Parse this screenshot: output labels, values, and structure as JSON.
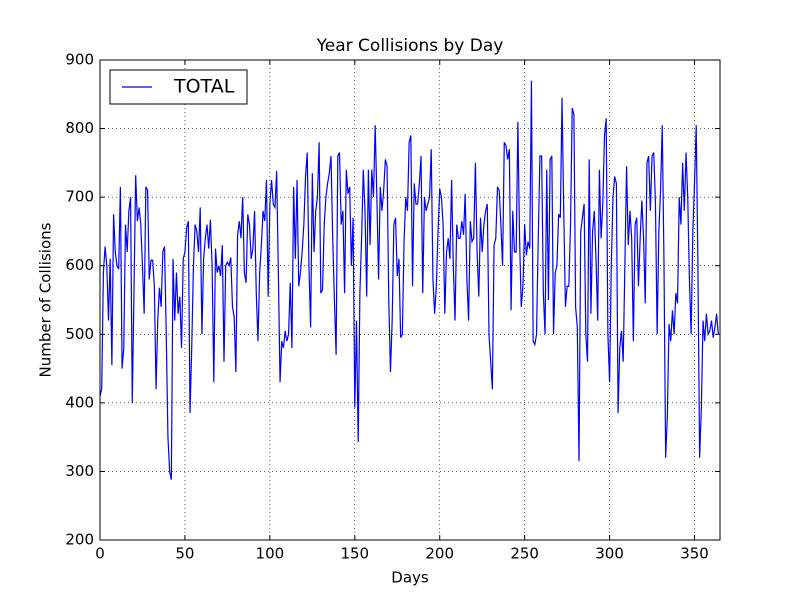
{
  "chart_data": {
    "type": "line",
    "title": "Year Collisions by Day",
    "x_label": "Days",
    "y_label": "Number of Collisions",
    "xlim": [
      0,
      365
    ],
    "ylim": [
      200,
      900
    ],
    "xticks": [
      0,
      50,
      100,
      150,
      200,
      250,
      300,
      350
    ],
    "yticks": [
      200,
      300,
      400,
      500,
      600,
      700,
      800,
      900
    ],
    "grid": true,
    "legend": "upper left",
    "x": [
      0,
      1,
      2,
      3,
      4,
      5,
      6,
      7,
      8,
      9,
      10,
      11,
      12,
      13,
      14,
      15,
      16,
      17,
      18,
      19,
      20,
      21,
      22,
      23,
      24,
      25,
      26,
      27,
      28,
      29,
      30,
      31,
      32,
      33,
      34,
      35,
      36,
      37,
      38,
      39,
      40,
      41,
      42,
      43,
      44,
      45,
      46,
      47,
      48,
      49,
      50,
      51,
      52,
      53,
      54,
      55,
      56,
      57,
      58,
      59,
      60,
      61,
      62,
      63,
      64,
      65,
      66,
      67,
      68,
      69,
      70,
      71,
      72,
      73,
      74,
      75,
      76,
      77,
      78,
      79,
      80,
      81,
      82,
      83,
      84,
      85,
      86,
      87,
      88,
      89,
      90,
      91,
      92,
      93,
      94,
      95,
      96,
      97,
      98,
      99,
      100,
      101,
      102,
      103,
      104,
      105,
      106,
      107,
      108,
      109,
      110,
      111,
      112,
      113,
      114,
      115,
      116,
      117,
      118,
      119,
      120,
      121,
      122,
      123,
      124,
      125,
      126,
      127,
      128,
      129,
      130,
      131,
      132,
      133,
      134,
      135,
      136,
      137,
      138,
      139,
      140,
      141,
      142,
      143,
      144,
      145,
      146,
      147,
      148,
      149,
      150,
      151,
      152,
      153,
      154,
      155,
      156,
      157,
      158,
      159,
      160,
      161,
      162,
      163,
      164,
      165,
      166,
      167,
      168,
      169,
      170,
      171,
      172,
      173,
      174,
      175,
      176,
      177,
      178,
      179,
      180,
      181,
      182,
      183,
      184,
      185,
      186,
      187,
      188,
      189,
      190,
      191,
      192,
      193,
      194,
      195,
      196,
      197,
      198,
      199,
      200,
      201,
      202,
      203,
      204,
      205,
      206,
      207,
      208,
      209,
      210,
      211,
      212,
      213,
      214,
      215,
      216,
      217,
      218,
      219,
      220,
      221,
      222,
      223,
      224,
      225,
      226,
      227,
      228,
      229,
      230,
      231,
      232,
      233,
      234,
      235,
      236,
      237,
      238,
      239,
      240,
      241,
      242,
      243,
      244,
      245,
      246,
      247,
      248,
      249,
      250,
      251,
      252,
      253,
      254,
      255,
      256,
      257,
      258,
      259,
      260,
      261,
      262,
      263,
      264,
      265,
      266,
      267,
      268,
      269,
      270,
      271,
      272,
      273,
      274,
      275,
      276,
      277,
      278,
      279,
      280,
      281,
      282,
      283,
      284,
      285,
      286,
      287,
      288,
      289,
      290,
      291,
      292,
      293,
      294,
      295,
      296,
      297,
      298,
      299,
      300,
      301,
      302,
      303,
      304,
      305,
      306,
      307,
      308,
      309,
      310,
      311,
      312,
      313,
      314,
      315,
      316,
      317,
      318,
      319,
      320,
      321,
      322,
      323,
      324,
      325,
      326,
      327,
      328,
      329,
      330,
      331,
      332,
      333,
      334,
      335,
      336,
      337,
      338,
      339,
      340,
      341,
      342,
      343,
      344,
      345,
      346,
      347,
      348,
      349,
      350,
      351,
      352,
      353,
      354,
      355,
      356,
      357,
      358,
      359,
      360,
      361,
      362,
      363,
      364
    ],
    "series": [
      {
        "name": "TOTAL",
        "color": "#0000ff",
        "values": [
          410,
          420,
          590,
          628,
          600,
          520,
          610,
          455,
          675,
          620,
          600,
          595,
          715,
          450,
          480,
          660,
          620,
          680,
          700,
          400,
          560,
          732,
          665,
          685,
          660,
          600,
          530,
          715,
          710,
          580,
          608,
          608,
          570,
          420,
          520,
          568,
          540,
          620,
          628,
          500,
          350,
          300,
          288,
          610,
          520,
          590,
          530,
          555,
          480,
          610,
          620,
          655,
          665,
          385,
          480,
          600,
          660,
          650,
          620,
          685,
          500,
          610,
          640,
          660,
          625,
          667,
          600,
          430,
          625,
          590,
          600,
          585,
          630,
          460,
          600,
          605,
          600,
          612,
          540,
          525,
          445,
          645,
          665,
          640,
          700,
          590,
          575,
          675,
          660,
          610,
          625,
          680,
          560,
          490,
          590,
          630,
          680,
          665,
          725,
          555,
          690,
          725,
          690,
          685,
          738,
          590,
          430,
          490,
          480,
          505,
          490,
          500,
          575,
          480,
          715,
          610,
          725,
          570,
          590,
          620,
          660,
          730,
          765,
          600,
          510,
          735,
          620,
          680,
          700,
          780,
          560,
          565,
          660,
          700,
          720,
          735,
          760,
          640,
          550,
          470,
          760,
          765,
          660,
          680,
          560,
          740,
          705,
          715,
          600,
          670,
          393,
          520,
          343,
          560,
          640,
          740,
          680,
          555,
          740,
          630,
          740,
          700,
          805,
          700,
          580,
          715,
          680,
          710,
          755,
          745,
          550,
          445,
          520,
          660,
          670,
          585,
          610,
          495,
          500,
          635,
          700,
          680,
          780,
          790,
          570,
          720,
          690,
          690,
          720,
          760,
          560,
          700,
          680,
          690,
          700,
          770,
          580,
          530,
          570,
          650,
          712,
          700,
          660,
          530,
          620,
          640,
          610,
          725,
          600,
          520,
          660,
          640,
          640,
          665,
          645,
          705,
          580,
          520,
          665,
          635,
          640,
          750,
          620,
          555,
          670,
          620,
          660,
          680,
          690,
          500,
          460,
          420,
          630,
          640,
          715,
          710,
          660,
          600,
          780,
          775,
          755,
          770,
          535,
          680,
          620,
          620,
          810,
          640,
          540,
          570,
          660,
          615,
          635,
          625,
          870,
          490,
          485,
          500,
          640,
          760,
          760,
          560,
          500,
          740,
          550,
          755,
          760,
          500,
          590,
          600,
          675,
          670,
          845,
          680,
          540,
          570,
          570,
          660,
          830,
          820,
          540,
          510,
          315,
          650,
          670,
          690,
          500,
          460,
          755,
          530,
          650,
          680,
          610,
          520,
          740,
          640,
          690,
          790,
          815,
          500,
          430,
          600,
          700,
          730,
          720,
          385,
          480,
          505,
          460,
          600,
          745,
          630,
          680,
          640,
          490,
          660,
          670,
          570,
          640,
          695,
          640,
          545,
          750,
          760,
          680,
          760,
          765,
          690,
          500,
          650,
          710,
          805,
          610,
          320,
          380,
          515,
          490,
          535,
          500,
          560,
          545,
          700,
          660,
          750,
          680,
          765,
          700,
          580,
          500,
          650,
          720,
          805,
          600,
          320,
          390,
          520,
          490,
          530,
          500,
          505,
          520,
          495,
          510,
          530,
          500
        ]
      }
    ]
  }
}
